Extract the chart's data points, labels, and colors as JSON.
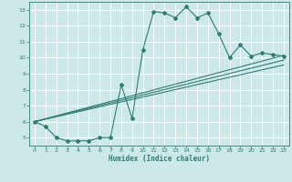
{
  "title": "",
  "xlabel": "Humidex (Indice chaleur)",
  "bg_color": "#cce8e8",
  "line_color": "#2e7d72",
  "grid_color": "#ffffff",
  "xlim": [
    -0.5,
    23.5
  ],
  "ylim": [
    4.5,
    13.5
  ],
  "xticks": [
    0,
    1,
    2,
    3,
    4,
    5,
    6,
    7,
    8,
    9,
    10,
    11,
    12,
    13,
    14,
    15,
    16,
    17,
    18,
    19,
    20,
    21,
    22,
    23
  ],
  "yticks": [
    5,
    6,
    7,
    8,
    9,
    10,
    11,
    12,
    13
  ],
  "line1_x": [
    0,
    1,
    2,
    3,
    4,
    5,
    6,
    7,
    8,
    9,
    10,
    11,
    12,
    13,
    14,
    15,
    16,
    17,
    18,
    19,
    20,
    21,
    22,
    23
  ],
  "line1_y": [
    6.0,
    5.7,
    5.0,
    4.8,
    4.8,
    4.8,
    5.0,
    5.0,
    8.3,
    6.2,
    10.5,
    12.9,
    12.8,
    12.5,
    13.2,
    12.5,
    12.8,
    11.5,
    10.0,
    10.8,
    10.1,
    10.3,
    10.2,
    10.1
  ],
  "line2_x": [
    0,
    23
  ],
  "line2_y": [
    6.0,
    10.15
  ],
  "line3_x": [
    0,
    23
  ],
  "line3_y": [
    6.0,
    9.55
  ],
  "line4_x": [
    0,
    23
  ],
  "line4_y": [
    6.0,
    9.85
  ]
}
